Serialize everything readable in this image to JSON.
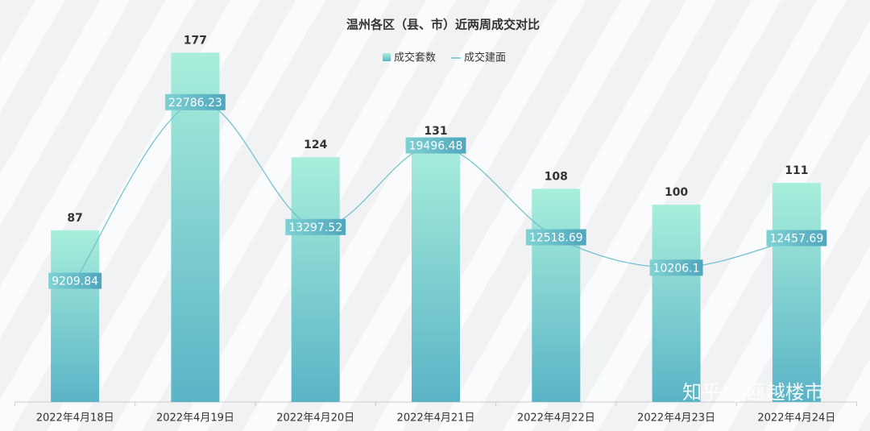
{
  "chart_data": {
    "type": "bar-line",
    "title": "温州各区（县、市）近两周成交对比",
    "categories": [
      "2022年4月18日",
      "2022年4月19日",
      "2022年4月20日",
      "2022年4月21日",
      "2022年4月22日",
      "2022年4月23日",
      "2022年4月24日"
    ],
    "series": [
      {
        "name": "成交套数",
        "type": "bar",
        "color": "#5fb8c9",
        "values": [
          87,
          177,
          124,
          131,
          108,
          100,
          111
        ]
      },
      {
        "name": "成交建面",
        "type": "line",
        "axis": "y2",
        "color": "#6cc0cf",
        "values": [
          9209.84,
          22786.23,
          13297.52,
          19496.48,
          12518.69,
          10206.1,
          12457.69
        ]
      }
    ],
    "ylim": [
      0,
      180
    ],
    "y2lim": [
      0,
      27000
    ],
    "legend": "top",
    "watermark": "知乎 @瓯越楼市"
  }
}
